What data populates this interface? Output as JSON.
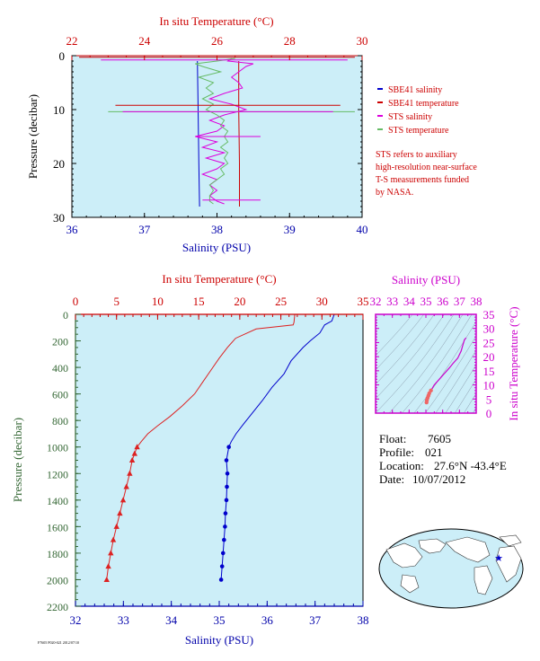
{
  "chart_data": [
    {
      "id": "top",
      "type": "line",
      "x_label": "Salinity (PSU)",
      "x_ticks": [
        "36",
        "37",
        "38",
        "39",
        "40"
      ],
      "x_range": [
        36,
        40
      ],
      "top_label": "In situ Temperature (°C)",
      "top_ticks": [
        "22",
        "24",
        "26",
        "28",
        "30"
      ],
      "top_range": [
        22,
        30
      ],
      "y_label": "Pressure (decibar)",
      "y_ticks": [
        "0",
        "10",
        "20",
        "30"
      ],
      "y_range": [
        0,
        30
      ],
      "legend": [
        {
          "label": "SBE41 salinity",
          "color": "#0000cc"
        },
        {
          "label": "SBE41 temperature",
          "color": "#cc0000"
        },
        {
          "label": "STS salinity",
          "color": "#dd00dd"
        },
        {
          "label": "STS temperature",
          "color": "#66bb66"
        }
      ],
      "note": [
        "STS refers to auxiliary",
        "high-resolution near-surface",
        "T-S measurements funded",
        "by NASA."
      ],
      "series": [
        {
          "name": "SBE41 salinity",
          "axis": "bottom",
          "color": "#0000cc",
          "points": [
            [
              37.73,
              1
            ],
            [
              37.74,
              10
            ],
            [
              37.75,
              20
            ],
            [
              37.76,
              28
            ]
          ]
        },
        {
          "name": "SBE41 temperature",
          "axis": "top",
          "color": "#cc0000",
          "points": [
            [
              26.6,
              1
            ],
            [
              26.6,
              10
            ],
            [
              26.62,
              20
            ],
            [
              26.62,
              28
            ]
          ]
        },
        {
          "name": "STS salinity",
          "axis": "bottom",
          "color": "#dd00dd",
          "points": [
            [
              38.2,
              0.5
            ],
            [
              38.15,
              1
            ],
            [
              38.5,
              1.5
            ],
            [
              38.4,
              2
            ],
            [
              38.3,
              3
            ],
            [
              38.2,
              4
            ],
            [
              38.3,
              5
            ],
            [
              38.35,
              6
            ],
            [
              38.1,
              7
            ],
            [
              37.9,
              8
            ],
            [
              38.2,
              9
            ],
            [
              38.4,
              10
            ],
            [
              38.1,
              11
            ],
            [
              37.9,
              12
            ],
            [
              38.1,
              13
            ],
            [
              38.0,
              14
            ],
            [
              37.7,
              15
            ],
            [
              38.0,
              16
            ],
            [
              37.8,
              17
            ],
            [
              38.1,
              18
            ],
            [
              37.85,
              19
            ],
            [
              38.1,
              20
            ],
            [
              38.0,
              21
            ],
            [
              37.8,
              22
            ],
            [
              38.0,
              23
            ],
            [
              37.9,
              24
            ],
            [
              38.0,
              25
            ],
            [
              37.9,
              26
            ],
            [
              38.0,
              27
            ],
            [
              38.1,
              27.5
            ]
          ]
        },
        {
          "name": "STS temperature",
          "axis": "top",
          "color": "#66bb66",
          "points": [
            [
              26.5,
              0.5
            ],
            [
              26.0,
              1
            ],
            [
              25.4,
              1.5
            ],
            [
              25.6,
              2
            ],
            [
              26.1,
              3
            ],
            [
              25.5,
              4
            ],
            [
              25.9,
              5
            ],
            [
              25.7,
              6
            ],
            [
              25.9,
              7
            ],
            [
              25.6,
              8
            ],
            [
              25.9,
              9
            ],
            [
              25.7,
              10
            ],
            [
              26.0,
              11
            ],
            [
              26.2,
              12
            ],
            [
              26.1,
              13
            ],
            [
              26.3,
              14
            ],
            [
              26.2,
              15
            ],
            [
              26.3,
              16
            ],
            [
              26.1,
              17
            ],
            [
              26.3,
              18
            ],
            [
              26.2,
              19
            ],
            [
              26.3,
              20
            ],
            [
              26.1,
              21
            ],
            [
              26.2,
              22
            ],
            [
              26.0,
              23
            ],
            [
              25.8,
              24
            ],
            [
              25.9,
              25
            ],
            [
              25.8,
              26
            ],
            [
              25.8,
              27
            ],
            [
              25.9,
              27.5
            ]
          ]
        }
      ],
      "spikes": [
        {
          "axis": "top",
          "y": 0.3,
          "x": [
            22.2,
            29.8
          ],
          "color": "#cc0000"
        },
        {
          "axis": "bottom",
          "y": 0.8,
          "x": [
            36.4,
            39.8
          ],
          "color": "#dd00dd"
        },
        {
          "axis": "bottom",
          "y": 9.2,
          "x": [
            36.6,
            39.7
          ],
          "color": "#cc0000"
        },
        {
          "axis": "bottom",
          "y": 10.4,
          "x": [
            36.5,
            39.9
          ],
          "color": "#66bb66"
        },
        {
          "axis": "bottom",
          "y": 10.4,
          "x": [
            36.7,
            39.6
          ],
          "color": "#dd00dd"
        },
        {
          "axis": "bottom",
          "y": 15.0,
          "x": [
            37.7,
            38.6
          ],
          "color": "#dd00dd"
        },
        {
          "axis": "bottom",
          "y": 26.8,
          "x": [
            37.8,
            38.6
          ],
          "color": "#dd00dd"
        }
      ]
    },
    {
      "id": "profile",
      "type": "line",
      "x_label": "Salinity (PSU)",
      "x_ticks": [
        "32",
        "33",
        "34",
        "35",
        "36",
        "37",
        "38"
      ],
      "x_range": [
        32,
        38
      ],
      "top_label": "In situ Temperature (°C)",
      "top_ticks": [
        "0",
        "5",
        "10",
        "15",
        "20",
        "25",
        "30",
        "35"
      ],
      "top_range": [
        0,
        35
      ],
      "y_label": "Pressure (decibar)",
      "y_ticks": [
        "0",
        "200",
        "400",
        "600",
        "800",
        "1000",
        "1200",
        "1400",
        "1600",
        "1800",
        "2000",
        "2200"
      ],
      "y_range": [
        0,
        2200
      ],
      "temperature": {
        "color": "#dd2222",
        "points": [
          [
            26.7,
            0
          ],
          [
            26.6,
            60
          ],
          [
            26.5,
            80
          ],
          [
            22.0,
            110
          ],
          [
            19.5,
            180
          ],
          [
            18.5,
            250
          ],
          [
            17.5,
            330
          ],
          [
            16.5,
            420
          ],
          [
            15.5,
            510
          ],
          [
            14.5,
            600
          ],
          [
            13.0,
            690
          ],
          [
            11.5,
            770
          ],
          [
            10.0,
            840
          ],
          [
            8.8,
            900
          ],
          [
            8.0,
            960
          ],
          [
            7.5,
            1000
          ],
          [
            7.2,
            1050
          ],
          [
            6.9,
            1100
          ],
          [
            6.6,
            1200
          ],
          [
            6.2,
            1300
          ],
          [
            5.8,
            1400
          ],
          [
            5.4,
            1500
          ],
          [
            5.0,
            1600
          ],
          [
            4.6,
            1700
          ],
          [
            4.3,
            1800
          ],
          [
            4.0,
            1900
          ],
          [
            3.8,
            2000
          ]
        ],
        "marker_start": 1000
      },
      "salinity": {
        "color": "#0000cc",
        "points": [
          [
            37.4,
            0
          ],
          [
            37.35,
            50
          ],
          [
            37.2,
            80
          ],
          [
            37.1,
            140
          ],
          [
            36.9,
            200
          ],
          [
            36.75,
            250
          ],
          [
            36.5,
            350
          ],
          [
            36.35,
            450
          ],
          [
            36.1,
            550
          ],
          [
            35.9,
            650
          ],
          [
            35.7,
            740
          ],
          [
            35.5,
            830
          ],
          [
            35.35,
            900
          ],
          [
            35.25,
            960
          ],
          [
            35.2,
            1000
          ],
          [
            35.15,
            1100
          ],
          [
            35.17,
            1200
          ],
          [
            35.16,
            1300
          ],
          [
            35.15,
            1400
          ],
          [
            35.13,
            1500
          ],
          [
            35.12,
            1600
          ],
          [
            35.1,
            1700
          ],
          [
            35.08,
            1800
          ],
          [
            35.06,
            1900
          ],
          [
            35.04,
            2000
          ]
        ],
        "marker_start": 1000
      }
    },
    {
      "id": "ts",
      "type": "scatter",
      "x_label": "Salinity (PSU)",
      "x_ticks": [
        "32",
        "33",
        "34",
        "35",
        "36",
        "37",
        "38"
      ],
      "x_range": [
        32,
        38
      ],
      "y_label": "In situ Temperature (°C)",
      "y_ticks": [
        "0",
        "5",
        "10",
        "15",
        "20",
        "25",
        "30",
        "35"
      ],
      "y_range": [
        0,
        35
      ],
      "line_color": "#cc00cc",
      "marker_color": "#ee6666",
      "points": [
        [
          37.4,
          26.7
        ],
        [
          37.3,
          26.0
        ],
        [
          37.1,
          22.0
        ],
        [
          36.9,
          19.5
        ],
        [
          36.6,
          17.5
        ],
        [
          36.4,
          16.0
        ],
        [
          36.1,
          14.0
        ],
        [
          35.8,
          12.0
        ],
        [
          35.5,
          10.0
        ],
        [
          35.3,
          8.0
        ],
        [
          35.2,
          7.0
        ],
        [
          35.15,
          6.2
        ],
        [
          35.1,
          5.4
        ],
        [
          35.06,
          4.6
        ],
        [
          35.04,
          3.8
        ]
      ]
    }
  ],
  "info": {
    "float_label": "Float:",
    "float_value": "7605",
    "profile_label": "Profile:",
    "profile_value": "021",
    "location_label": "Location:",
    "location_value": "27.6°N  -43.4°E",
    "date_label": "Date:",
    "date_value": "10/07/2012"
  },
  "footnote": "F7605 P020-021 2012/07/10",
  "colors": {
    "plot_bg": "#cceef8",
    "red": "#cc0000",
    "blue": "#0000aa",
    "magenta": "#cc00cc",
    "green": "#336633"
  }
}
